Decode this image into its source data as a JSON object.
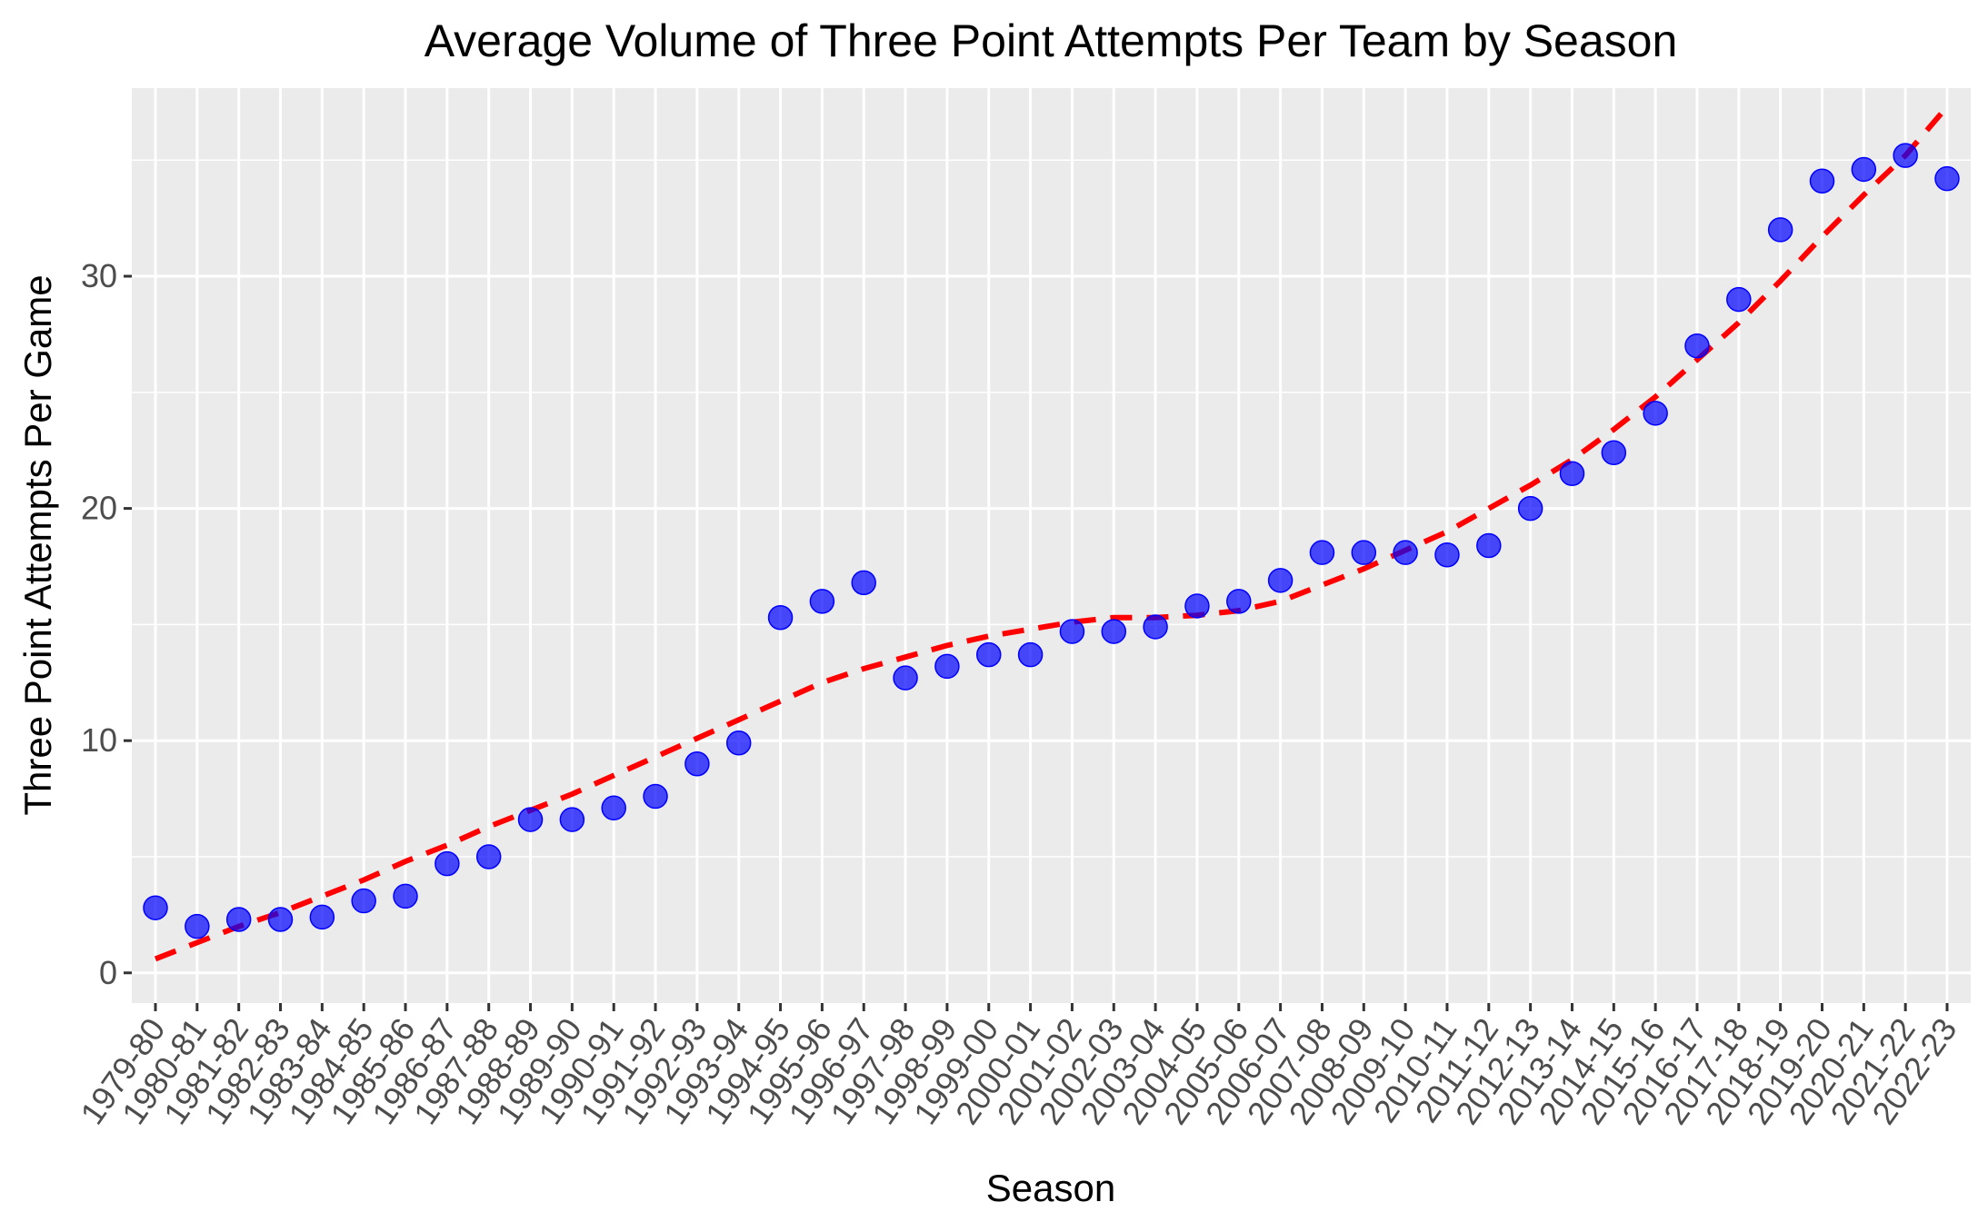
{
  "chart_data": {
    "type": "scatter",
    "title": "Average Volume of Three Point Attempts Per Team by Season",
    "xlabel": "Season",
    "ylabel": "Three Point Attempts Per Game",
    "categories": [
      "1979-80",
      "1980-81",
      "1981-82",
      "1982-83",
      "1983-84",
      "1984-85",
      "1985-86",
      "1986-87",
      "1987-88",
      "1988-89",
      "1989-90",
      "1990-91",
      "1991-92",
      "1992-93",
      "1993-94",
      "1994-95",
      "1995-96",
      "1996-97",
      "1997-98",
      "1998-99",
      "1999-00",
      "2000-01",
      "2001-02",
      "2002-03",
      "2003-04",
      "2004-05",
      "2005-06",
      "2006-07",
      "2007-08",
      "2008-09",
      "2009-10",
      "2010-11",
      "2011-12",
      "2012-13",
      "2013-14",
      "2014-15",
      "2015-16",
      "2016-17",
      "2017-18",
      "2018-19",
      "2019-20",
      "2020-21",
      "2021-22",
      "2022-23"
    ],
    "series": [
      {
        "values": [
          2.8,
          2.0,
          2.3,
          2.3,
          2.4,
          3.1,
          3.3,
          4.7,
          5.0,
          6.6,
          6.6,
          7.1,
          7.6,
          9.0,
          9.9,
          15.3,
          16.0,
          16.8,
          12.7,
          13.2,
          13.7,
          13.7,
          14.7,
          14.7,
          14.9,
          15.8,
          16.0,
          16.9,
          18.1,
          18.1,
          18.1,
          18.0,
          18.4,
          20.0,
          21.5,
          22.4,
          24.1,
          27.0,
          29.0,
          32.0,
          34.1,
          34.6,
          35.2,
          34.2
        ],
        "color": "#0000ff"
      },
      {
        "style": "dashed",
        "values": [
          0.6,
          1.3,
          2.0,
          2.6,
          3.3,
          4.0,
          4.8,
          5.5,
          6.3,
          7.0,
          7.7,
          8.5,
          9.3,
          10.1,
          10.9,
          11.7,
          12.5,
          13.1,
          13.6,
          14.1,
          14.5,
          14.8,
          15.1,
          15.3,
          15.3,
          15.4,
          15.6,
          16.0,
          16.7,
          17.4,
          18.2,
          19.0,
          20.0,
          21.0,
          22.1,
          23.4,
          24.8,
          26.4,
          28.0,
          29.8,
          31.7,
          33.5,
          35.2,
          37.3
        ],
        "color": "#ff0000"
      }
    ],
    "ylim": [
      -1.3,
      38.1
    ],
    "yticks": [
      0,
      10,
      20,
      30
    ],
    "ytick_labels": [
      "0",
      "10",
      "20",
      "30"
    ],
    "grid": true,
    "legend": "none",
    "panel_background": "#ebebeb",
    "grid_color": "#ffffff"
  }
}
